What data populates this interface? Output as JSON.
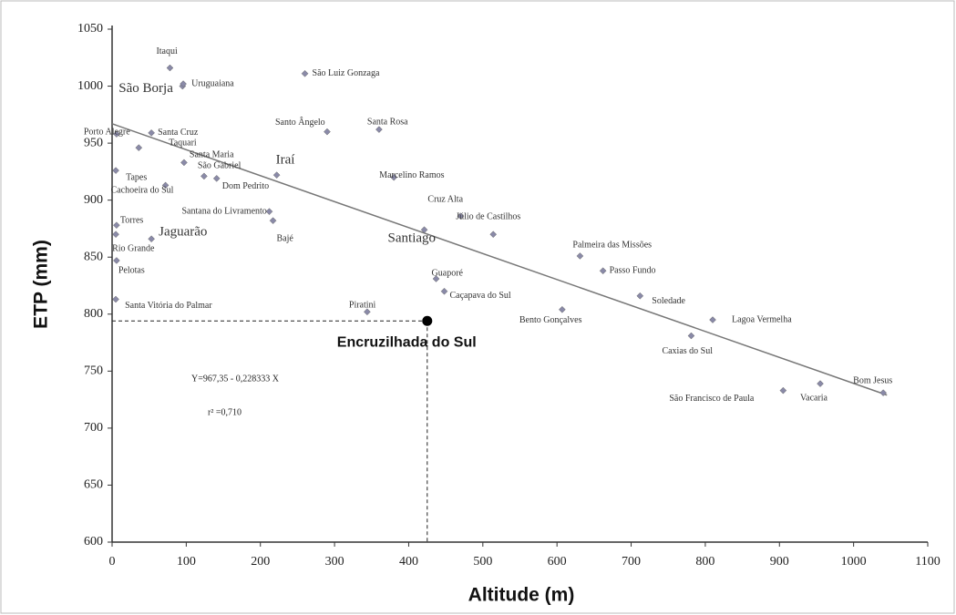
{
  "chart_data": {
    "type": "scatter",
    "xlabel": "Altitude (m)",
    "ylabel": "ETP (mm)",
    "xlim": [
      0,
      1100
    ],
    "ylim": [
      600,
      1050
    ],
    "xticks": [
      0,
      100,
      200,
      300,
      400,
      500,
      600,
      700,
      800,
      900,
      1000,
      1100
    ],
    "yticks": [
      600,
      650,
      700,
      750,
      800,
      850,
      900,
      950,
      1000,
      1050
    ],
    "color": "#8a8aa8",
    "labels": [
      "Itaqui",
      "São Borja",
      "Uruguaiana",
      "São Luiz Gonzaga",
      "Porto Alegre",
      "Santa Cruz",
      "Taquari",
      "Santo Ângelo",
      "Santa Rosa",
      "Santa Maria",
      "São Gabriel",
      "Dom Pedrito",
      "Iraí",
      "Marcelino Ramos",
      "Tapes",
      "Cachoeira do Sul",
      "Cruz Alta",
      "Júlio de Castilhos",
      "Santana do Livramento",
      "Bajé",
      "Santiago",
      "Torres",
      "Jaguarão",
      "Rio Grande",
      "Pelotas",
      "Palmeira das Missões",
      "Passo Fundo",
      "Guaporé",
      "Caçapava do Sul",
      "Soledade",
      "Santa Vitória do Palmar",
      "Piratini",
      "Bento Gonçalves",
      "Lagoa Vermelha",
      "Caxias do Sul",
      "Bom Jesus",
      "Vacaria",
      "São Francisco de Paula"
    ],
    "x": [
      78,
      95,
      96,
      260,
      6,
      53,
      36,
      290,
      360,
      97,
      124,
      141,
      222,
      380,
      5,
      72,
      470,
      514,
      212,
      217,
      421,
      6,
      53,
      5,
      6,
      631,
      662,
      437,
      448,
      712,
      5,
      344,
      607,
      810,
      781,
      1040,
      955,
      905
    ],
    "y": [
      1016,
      1000,
      1002,
      1011,
      958,
      959,
      946,
      960,
      962,
      933,
      921,
      919,
      922,
      920,
      926,
      913,
      886,
      870,
      890,
      882,
      874,
      878,
      866,
      870,
      847,
      851,
      838,
      831,
      820,
      816,
      813,
      802,
      804,
      795,
      781,
      731,
      739,
      733
    ],
    "trend": {
      "x": [
        0,
        1045
      ],
      "y": [
        967,
        729
      ]
    },
    "equation": "Y=967,35 - 0,228333 X",
    "r2": "r² =0,710",
    "highlight": {
      "label": "Encruzilhada do Sul",
      "x": 425,
      "y": 794
    }
  }
}
